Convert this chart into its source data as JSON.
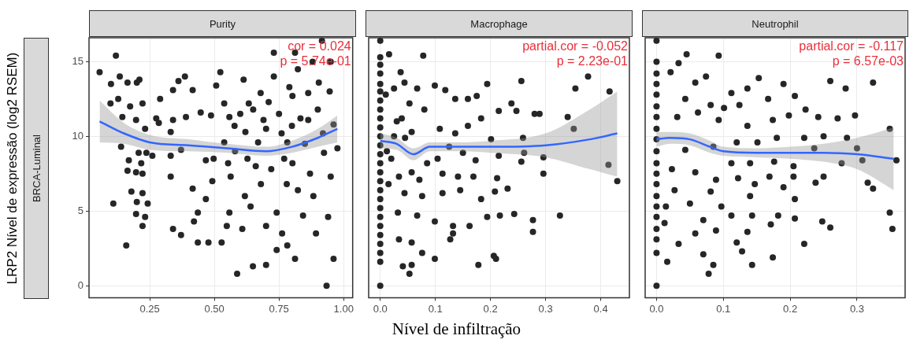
{
  "chart_data": [
    {
      "type": "scatter",
      "title": "Purity",
      "subtitle": "BRCA-Luminal",
      "ylabel": "LRP2 Nível de expressão (log2 RSEM)",
      "annotations": [
        "cor = 0.024",
        "p = 5.74e-01"
      ],
      "xlim": [
        0.015,
        1.035
      ],
      "xticks": [
        {
          "value": 0.25,
          "label": "0.25"
        },
        {
          "value": 0.5,
          "label": "0.50"
        },
        {
          "value": 0.75,
          "label": "0.75"
        },
        {
          "value": 1,
          "label": "1.00"
        }
      ],
      "ylim": [
        -0.8,
        16.6
      ],
      "yticks": [
        0,
        5,
        10,
        15
      ],
      "grid": true,
      "series": [
        {
          "marker": "circle",
          "color": "#262626",
          "x": [
            0.056,
            0.119,
            0.1,
            0.134,
            0.128,
            0.098,
            0.164,
            0.2,
            0.21,
            0.144,
            0.174,
            0.222,
            0.197,
            0.232,
            0.139,
            0.169,
            0.164,
            0.197,
            0.222,
            0.217,
            0.237,
            0.207,
            0.26,
            0.179,
            0.222,
            0.2,
            0.242,
            0.197,
            0.232,
            0.222,
            0.109,
            0.159,
            0.275,
            0.29,
            0.285,
            0.34,
            0.331,
            0.34,
            0.361,
            0.386,
            0.39,
            0.416,
            0.331,
            0.331,
            0.371,
            0.416,
            0.436,
            0.421,
            0.34,
            0.371,
            0.436,
            0.477,
            0.467,
            0.492,
            0.497,
            0.467,
            0.447,
            0.487,
            0.507,
            0.523,
            0.538,
            0.558,
            0.578,
            0.538,
            0.553,
            0.563,
            0.528,
            0.548,
            0.558,
            0.588,
            0.608,
            0.618,
            0.613,
            0.633,
            0.649,
            0.7,
            0.628,
            0.669,
            0.69,
            0.73,
            0.73,
            0.679,
            0.72,
            0.7,
            0.741,
            0.741,
            0.762,
            0.782,
            0.782,
            0.802,
            0.812,
            0.823,
            0.833,
            0.823,
            0.843,
            0.812,
            0.802,
            0.863,
            0.883,
            0.893,
            0.863,
            0.904,
            0.924,
            0.934,
            0.946,
            0.961,
            0.976,
            0.94,
            0.961,
            0.916,
            0.88,
            0.95,
            0.6,
            0.62,
            0.65,
            0.66,
            0.68,
            0.7,
            0.71,
            0.75,
            0.76,
            0.77,
            0.78,
            0.79,
            0.8,
            0.85,
            0.87,
            0.9,
            0.92,
            0.95,
            0.58,
            0.64
          ],
          "values": [
            14.3,
            15.4,
            13.5,
            14.0,
            12.5,
            12.2,
            13.6,
            13.6,
            13.8,
            11.3,
            12.0,
            12.2,
            11.1,
            10.5,
            9.3,
            8.4,
            7.7,
            7.6,
            7.5,
            8.2,
            8.9,
            8.9,
            8.7,
            6.3,
            6.2,
            5.6,
            5.5,
            4.8,
            4.6,
            4.0,
            5.5,
            2.7,
            11.2,
            12.5,
            10.9,
            11.1,
            10.3,
            13.1,
            13.7,
            14.0,
            11.3,
            13.1,
            8.7,
            7.3,
            9.1,
            6.5,
            4.9,
            4.3,
            3.8,
            3.4,
            2.9,
            2.9,
            5.8,
            7.0,
            8.5,
            8.4,
            11.6,
            11.4,
            13.4,
            14.3,
            12.2,
            11.3,
            10.7,
            9.6,
            8.2,
            7.3,
            2.9,
            4.0,
            4.9,
            0.8,
            3.8,
            6.0,
            13.8,
            12.2,
            1.3,
            1.4,
            8.5,
            9.6,
            11.1,
            14.0,
            15.6,
            12.9,
            7.8,
            4.0,
            4.9,
            2.4,
            3.5,
            2.7,
            9.6,
            12.7,
            15.6,
            14.5,
            11.2,
            6.4,
            4.7,
            1.8,
            8.2,
            11.1,
            6.0,
            3.5,
            12.9,
            13.6,
            8.9,
            0.0,
            13.0,
            10.8,
            9.2,
            4.6,
            1.8,
            16.4,
            15.0,
            15.0,
            11.5,
            10.3,
            11.8,
            8.0,
            6.8,
            10.5,
            12.3,
            11.5,
            10.2,
            8.5,
            6.8,
            13.3,
            10.7,
            9.5,
            7.5,
            11.8,
            10.2,
            7.3,
            9.0,
            5.3
          ]
        },
        {
          "type": "line",
          "marker": "none",
          "color": "#3366ff",
          "x": [
            0.056,
            0.15,
            0.25,
            0.4,
            0.55,
            0.7,
            0.8,
            0.9,
            0.976
          ],
          "values": [
            11.0,
            10.2,
            9.6,
            9.4,
            9.2,
            9.0,
            9.3,
            9.9,
            10.5
          ],
          "lower": [
            9.6,
            9.5,
            9.1,
            9.0,
            8.9,
            8.7,
            8.9,
            9.3,
            9.6
          ],
          "upper": [
            12.4,
            10.9,
            10.1,
            9.8,
            9.5,
            9.3,
            9.7,
            10.5,
            11.4
          ]
        }
      ]
    },
    {
      "type": "scatter",
      "title": "Macrophage",
      "xlabel": "Nível de infiltração",
      "annotations": [
        "partial.cor = -0.052",
        "p = 2.23e-01"
      ],
      "xlim": [
        -0.021,
        0.452
      ],
      "xticks": [
        {
          "value": 0,
          "label": "0.0"
        },
        0.1,
        0.2,
        0.3,
        0.4
      ],
      "ylim": [
        -0.8,
        16.6
      ],
      "yticks": [
        0,
        5,
        10,
        15
      ],
      "tick_labels": "x",
      "grid": true,
      "series": [
        {
          "marker": "circle",
          "color": "#262626",
          "x": [
            0,
            0,
            0,
            0,
            0,
            0,
            0,
            0,
            0,
            0,
            0,
            0,
            0,
            0,
            0,
            0,
            0,
            0,
            0,
            0,
            0,
            0,
            0,
            0,
            0,
            0,
            0.016,
            0.078,
            0.037,
            0.025,
            0.044,
            0.067,
            0.099,
            0.118,
            0.136,
            0.159,
            0.175,
            0.194,
            0.256,
            0.377,
            0.354,
            0.416,
            0.34,
            0.351,
            0.28,
            0.289,
            0.238,
            0.247,
            0.215,
            0.183,
            0.159,
            0.136,
            0.108,
            0.08,
            0.053,
            0.039,
            0.057,
            0.025,
            0.201,
            0.259,
            0.261,
            0.296,
            0.256,
            0.215,
            0.173,
            0.15,
            0.125,
            0.104,
            0.085,
            0.057,
            0.034,
            0.071,
            0.113,
            0.141,
            0.169,
            0.212,
            0.296,
            0.414,
            0.43,
            0.044,
            0.076,
            0.113,
            0.145,
            0.183,
            0.208,
            0.231,
            0.032,
            0.067,
            0.099,
            0.132,
            0.162,
            0.194,
            0.217,
            0.243,
            0.277,
            0.326,
            0.277,
            0.034,
            0.057,
            0.076,
            0.099,
            0.132,
            0.127,
            0.206,
            0.21,
            0.178,
            0.041,
            0.057,
            0.053,
            0.01,
            0.012,
            0.015,
            0.02,
            0.03,
            0.045
          ],
          "values": [
            16.4,
            15.3,
            14.8,
            14.2,
            13.5,
            13.0,
            12.4,
            11.8,
            11.2,
            10.6,
            10.0,
            9.4,
            8.8,
            8.2,
            7.6,
            7.0,
            6.4,
            5.8,
            5.2,
            4.6,
            4.0,
            3.4,
            2.8,
            2.2,
            1.6,
            0.0,
            15.5,
            15.4,
            14.3,
            13.2,
            13.6,
            13.2,
            13.4,
            13.1,
            12.5,
            12.5,
            12.7,
            13.5,
            13.7,
            14.0,
            13.2,
            13.0,
            11.3,
            10.5,
            11.5,
            11.5,
            12.2,
            11.7,
            11.7,
            11.2,
            10.7,
            10.2,
            10.5,
            11.8,
            12.2,
            11.2,
            10.3,
            10.0,
            9.8,
            9.9,
            8.9,
            8.6,
            8.3,
            8.7,
            8.4,
            8.9,
            9.3,
            8.5,
            8.2,
            7.6,
            7.3,
            7.1,
            7.5,
            7.3,
            7.3,
            7.2,
            7.5,
            8.1,
            7.0,
            6.2,
            6.0,
            6.2,
            6.4,
            5.8,
            6.3,
            6.5,
            4.9,
            4.7,
            4.3,
            4.0,
            4.0,
            4.6,
            4.7,
            4.8,
            4.4,
            4.7,
            3.6,
            3.1,
            2.9,
            2.2,
            1.8,
            3.5,
            3.1,
            2.0,
            1.8,
            1.4,
            1.3,
            1.4,
            0.8,
            12.8,
            9.0,
            6.8,
            8.5,
            11.0,
            9.9
          ]
        },
        {
          "type": "line",
          "marker": "none",
          "color": "#3366ff",
          "x": [
            0,
            0.03,
            0.06,
            0.09,
            0.15,
            0.2,
            0.3,
            0.38,
            0.43
          ],
          "values": [
            9.7,
            9.5,
            8.8,
            9.3,
            9.3,
            9.3,
            9.4,
            9.8,
            10.2
          ],
          "lower": [
            9.2,
            9.1,
            8.4,
            9.0,
            9.0,
            8.9,
            8.6,
            7.8,
            7.3
          ],
          "upper": [
            10.2,
            9.9,
            9.2,
            9.6,
            9.6,
            9.7,
            10.2,
            11.8,
            13.0
          ]
        }
      ]
    },
    {
      "type": "scatter",
      "title": "Neutrophil",
      "annotations": [
        "partial.cor = -0.117",
        "p = 6.57e-03"
      ],
      "xlim": [
        -0.017,
        0.372
      ],
      "xticks": [
        {
          "value": 0,
          "label": "0.0"
        },
        0.1,
        0.2,
        0.3
      ],
      "ylim": [
        -0.8,
        16.6
      ],
      "yticks": [
        0,
        5,
        10,
        15
      ],
      "tick_labels": "x",
      "grid": true,
      "series": [
        {
          "marker": "circle",
          "color": "#262626",
          "x": [
            0,
            0,
            0,
            0,
            0,
            0,
            0,
            0,
            0,
            0,
            0,
            0,
            0,
            0,
            0,
            0,
            0,
            0,
            0,
            0,
            0.045,
            0.093,
            0.033,
            0.021,
            0.074,
            0.153,
            0.19,
            0.26,
            0.283,
            0.324,
            0.207,
            0.136,
            0.112,
            0.058,
            0.043,
            0.081,
            0.101,
            0.124,
            0.167,
            0.223,
            0.242,
            0.271,
            0.297,
            0.198,
            0.174,
            0.136,
            0.093,
            0.062,
            0.031,
            0.349,
            0.285,
            0.25,
            0.221,
            0.18,
            0.151,
            0.12,
            0.085,
            0.043,
            0.236,
            0.3,
            0.359,
            0.308,
            0.277,
            0.176,
            0.14,
            0.112,
            0.058,
            0.023,
            0.205,
            0.205,
            0.169,
            0.122,
            0.089,
            0.25,
            0.238,
            0.316,
            0.324,
            0.19,
            0.147,
            0.027,
            0.081,
            0.14,
            0.207,
            0.05,
            0.097,
            0.014,
            0.349,
            0.182,
            0.143,
            0.112,
            0.07,
            0.207,
            0.248,
            0.26,
            0.353,
            0.171,
            0.012,
            0.058,
            0.089,
            0.136,
            0.033,
            0.12,
            0.221,
            0.174,
            0.07,
            0.128,
            0.016,
            0.143,
            0.085,
            0.078
          ],
          "values": [
            16.4,
            15.0,
            14.2,
            13.5,
            12.8,
            12.0,
            11.3,
            10.5,
            9.8,
            9.0,
            8.2,
            7.5,
            6.8,
            6.0,
            5.3,
            4.6,
            3.8,
            3.1,
            2.2,
            0.0,
            15.5,
            15.4,
            14.9,
            14.3,
            14.0,
            13.9,
            13.5,
            13.7,
            13.2,
            13.6,
            12.7,
            13.2,
            12.9,
            13.6,
            12.5,
            12.1,
            11.9,
            12.1,
            12.5,
            11.8,
            11.3,
            11.2,
            11.4,
            11.4,
            11.1,
            10.7,
            11.1,
            11.6,
            11.3,
            10.5,
            9.9,
            10.0,
            9.9,
            9.9,
            9.6,
            9.6,
            9.3,
            9.1,
            9.2,
            9.2,
            8.4,
            8.4,
            8.2,
            8.3,
            8.2,
            8.2,
            7.6,
            7.8,
            8.0,
            7.3,
            7.3,
            7.2,
            7.1,
            7.3,
            6.9,
            6.9,
            6.5,
            6.6,
            6.8,
            6.4,
            6.3,
            6.0,
            5.8,
            5.5,
            5.3,
            5.3,
            4.9,
            4.7,
            4.7,
            4.7,
            4.4,
            4.5,
            4.3,
            3.9,
            3.8,
            4.1,
            4.2,
            3.5,
            3.7,
            3.6,
            2.8,
            2.9,
            2.8,
            1.9,
            2.1,
            2.3,
            1.6,
            1.4,
            1.4,
            0.8
          ]
        },
        {
          "type": "line",
          "marker": "none",
          "color": "#3366ff",
          "x": [
            0,
            0.02,
            0.05,
            0.08,
            0.1,
            0.15,
            0.2,
            0.25,
            0.3,
            0.355
          ],
          "values": [
            9.8,
            9.9,
            9.8,
            9.3,
            9.0,
            8.9,
            8.9,
            8.9,
            8.8,
            8.5
          ],
          "lower": [
            9.3,
            9.5,
            9.4,
            8.9,
            8.7,
            8.6,
            8.5,
            8.3,
            7.8,
            6.4
          ],
          "upper": [
            10.3,
            10.3,
            10.2,
            9.7,
            9.3,
            9.2,
            9.3,
            9.5,
            9.9,
            10.6
          ]
        }
      ]
    }
  ]
}
